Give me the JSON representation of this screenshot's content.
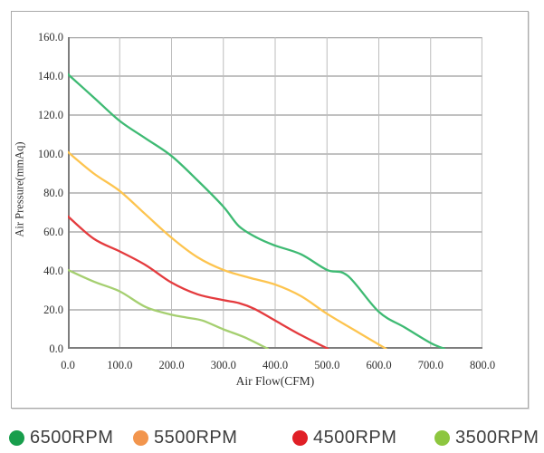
{
  "chart_data": {
    "type": "line",
    "title": "",
    "xlabel": "Air Flow(CFM)",
    "ylabel": "Air Pressure(mmAq)",
    "xlim": [
      0,
      800
    ],
    "ylim": [
      0,
      160
    ],
    "grid": true,
    "legend_position": "bottom",
    "x_ticks": {
      "values": [
        0,
        100,
        200,
        300,
        400,
        500,
        600,
        700,
        800
      ],
      "labels": [
        "0.0",
        "100.0",
        "200.0",
        "300.0",
        "400.0",
        "500.0",
        "600.0",
        "700.0",
        "800.0"
      ]
    },
    "y_ticks": {
      "values": [
        0,
        20,
        40,
        60,
        80,
        100,
        120,
        140,
        160
      ],
      "labels": [
        "0.0",
        "20.0",
        "40.0",
        "60.0",
        "80.0",
        "100.0",
        "120.0",
        "140.0",
        "160.0"
      ]
    },
    "series": [
      {
        "name": "6500RPM",
        "line_color": "#3eba73",
        "dot_color": "#189e4c",
        "points": [
          [
            0,
            141
          ],
          [
            50,
            129
          ],
          [
            100,
            117
          ],
          [
            150,
            108
          ],
          [
            200,
            99
          ],
          [
            250,
            86.5
          ],
          [
            300,
            73
          ],
          [
            330,
            63
          ],
          [
            365,
            57
          ],
          [
            400,
            53
          ],
          [
            450,
            48.5
          ],
          [
            500,
            40.5
          ],
          [
            540,
            37.5
          ],
          [
            600,
            19
          ],
          [
            650,
            11
          ],
          [
            700,
            3
          ],
          [
            727,
            0
          ]
        ]
      },
      {
        "name": "5500RPM",
        "line_color": "#fdc44f",
        "dot_color": "#f2954d",
        "points": [
          [
            0,
            101
          ],
          [
            50,
            90
          ],
          [
            100,
            81
          ],
          [
            150,
            69
          ],
          [
            200,
            57
          ],
          [
            250,
            47
          ],
          [
            300,
            40.5
          ],
          [
            350,
            36.5
          ],
          [
            400,
            33
          ],
          [
            450,
            27
          ],
          [
            500,
            18
          ],
          [
            560,
            8.5
          ],
          [
            614,
            0
          ]
        ]
      },
      {
        "name": "4500RPM",
        "line_color": "#e43b3e",
        "dot_color": "#e01f26",
        "points": [
          [
            0,
            68
          ],
          [
            50,
            56.5
          ],
          [
            100,
            50
          ],
          [
            150,
            43
          ],
          [
            200,
            34
          ],
          [
            250,
            28
          ],
          [
            300,
            25
          ],
          [
            330,
            23.5
          ],
          [
            360,
            20.5
          ],
          [
            400,
            14.5
          ],
          [
            450,
            7
          ],
          [
            502,
            0
          ]
        ]
      },
      {
        "name": "3500RPM",
        "line_color": "#a5cf70",
        "dot_color": "#8dc63f",
        "points": [
          [
            0,
            40.5
          ],
          [
            50,
            34.5
          ],
          [
            100,
            29.5
          ],
          [
            150,
            21.5
          ],
          [
            200,
            17.5
          ],
          [
            230,
            16
          ],
          [
            260,
            14.5
          ],
          [
            300,
            10
          ],
          [
            340,
            6
          ],
          [
            386,
            0
          ]
        ]
      }
    ],
    "gridline_color_h": "#9c9c9c",
    "gridline_color_v": "#bdbdbd",
    "axis_color": "#7d7d7d"
  }
}
